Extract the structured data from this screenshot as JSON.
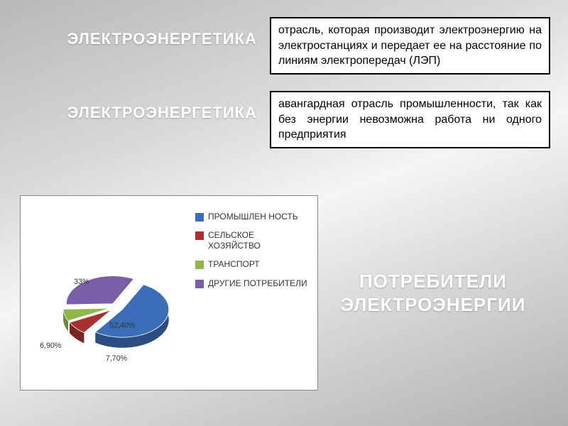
{
  "heading1": "ЭЛЕКТРОЭНЕРГЕТИКА",
  "definition1": "отрасль, которая производит электроэнергию на электростанциях и передает ее на расстояние по линиям электропередач (ЛЭП)",
  "heading2": "ЭЛЕКТРОЭНЕРГЕТИКА",
  "definition2": "авангардная отрасль промышленности, так как без энергии невозможна работа ни одного предприятия",
  "consumers_title_line1": "ПОТРЕБИТЕЛИ",
  "consumers_title_line2": "ЭЛЕКТРОЭНЕРГИИ",
  "chart": {
    "type": "pie-3d-exploded",
    "background_color": "#ffffff",
    "border_color": "#888888",
    "label_fontsize": 13,
    "legend_fontsize": 12,
    "slices": [
      {
        "name": "ПРОМЫШЛЕН НОСТЬ",
        "value": 52.4,
        "label": "52,40%",
        "color": "#3b6db8",
        "side_color": "#2a4d82"
      },
      {
        "name": "СЕЛЬСКОЕ ХОЗЯЙСТВО",
        "value": 7.7,
        "label": "7,70%",
        "color": "#a83030",
        "side_color": "#7a2323"
      },
      {
        "name": "ТРАНСПОРТ",
        "value": 6.9,
        "label": "6,90%",
        "color": "#8fb84a",
        "side_color": "#6a8a37"
      },
      {
        "name": "ДРУГИЕ ПОТРЕБИТЕЛИ",
        "value": 33.0,
        "label": "33%",
        "color": "#7a5fa8",
        "side_color": "#5a4680"
      }
    ]
  }
}
